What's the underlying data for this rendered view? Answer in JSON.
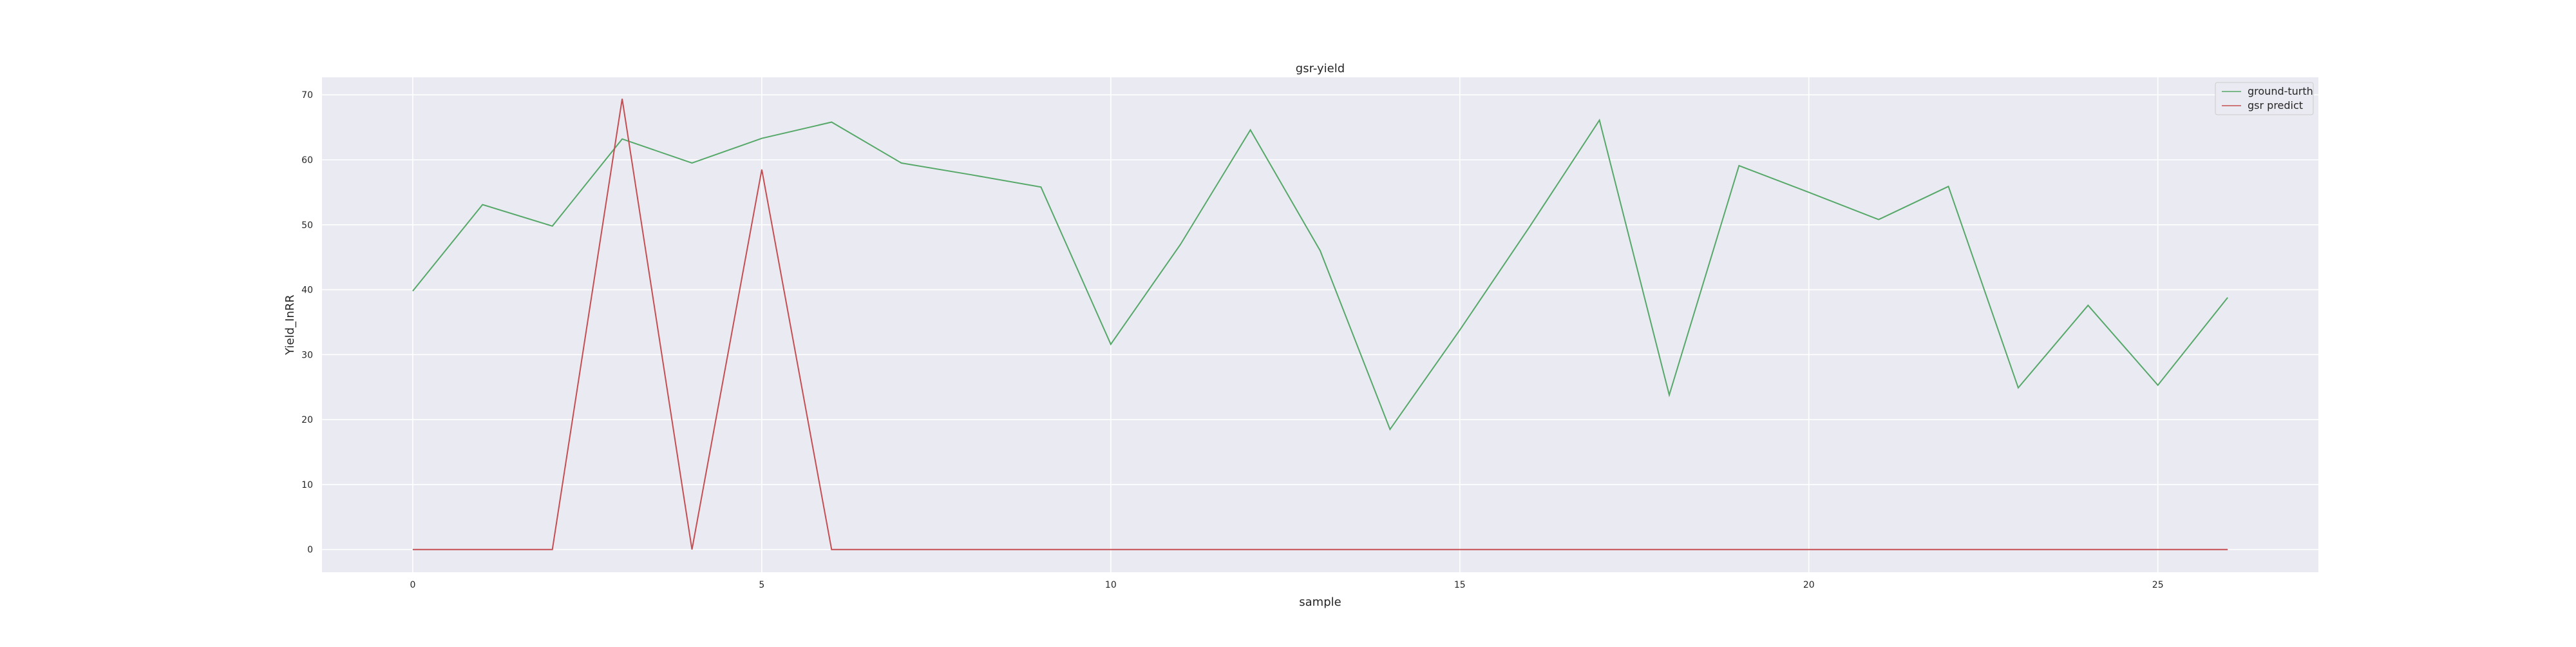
{
  "chart_data": {
    "type": "line",
    "title": "gsr-yield",
    "xlabel": "sample",
    "ylabel": "Yield_InRR",
    "xlim": [
      -1.3,
      27.3
    ],
    "ylim": [
      -3.5,
      72.7
    ],
    "xticks": [
      0,
      5,
      10,
      15,
      20,
      25
    ],
    "yticks": [
      0,
      10,
      20,
      30,
      40,
      50,
      60,
      70
    ],
    "grid": true,
    "legend_position": "top-right",
    "x": [
      0,
      1,
      2,
      3,
      4,
      5,
      6,
      7,
      8,
      9,
      10,
      11,
      12,
      13,
      14,
      15,
      16,
      17,
      18,
      19,
      20,
      21,
      22,
      23,
      24,
      25,
      26
    ],
    "series": [
      {
        "name": "ground-turth",
        "color": "#55a868",
        "values": [
          39.8,
          53.1,
          49.8,
          63.2,
          59.5,
          63.3,
          65.8,
          59.5,
          57.7,
          55.8,
          31.6,
          47.0,
          64.6,
          46.0,
          18.5,
          33.8,
          49.7,
          66.1,
          23.8,
          59.1,
          55.0,
          50.8,
          55.9,
          24.9,
          37.6,
          25.3,
          38.8
        ]
      },
      {
        "name": "gsr predict",
        "color": "#c44e52",
        "values": [
          0,
          0,
          0,
          69.4,
          0,
          58.5,
          0,
          0,
          0,
          0,
          0,
          0,
          0,
          0,
          0,
          0,
          0,
          0,
          0,
          0,
          0,
          0,
          0,
          0,
          0,
          0,
          0
        ]
      }
    ]
  }
}
